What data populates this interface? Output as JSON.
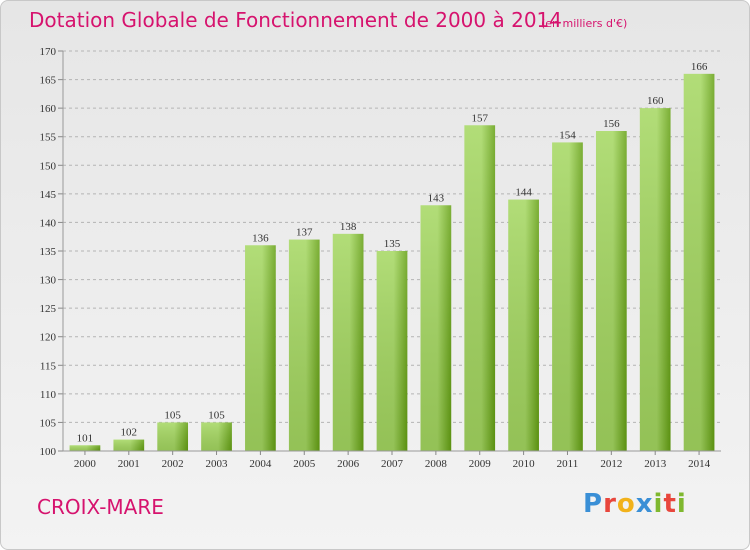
{
  "header": {
    "title": "Dotation Globale de Fonctionnement de 2000 à 2014",
    "unit": "(en milliers d'€)"
  },
  "footer": {
    "commune": "CROIX-MARE",
    "brand_letters": [
      "P",
      "r",
      "o",
      "x",
      "i",
      "t",
      "i"
    ],
    "brand_colors": [
      "#3a8fd6",
      "#e8463c",
      "#f2b21b",
      "#3a8fd6",
      "#7fb82f",
      "#e8463c",
      "#7fb82f"
    ]
  },
  "colors": {
    "title": "#d6136e",
    "bar_light": "#a4d760",
    "bar_dark": "#64a012",
    "grid": "#b4b4b4",
    "axis_text": "#333333"
  },
  "chart_data": {
    "type": "bar",
    "title": "Dotation Globale de Fonctionnement de 2000 à 2014",
    "xlabel": "",
    "ylabel": "",
    "categories": [
      "2000",
      "2001",
      "2002",
      "2003",
      "2004",
      "2005",
      "2006",
      "2007",
      "2008",
      "2009",
      "2010",
      "2011",
      "2012",
      "2013",
      "2014"
    ],
    "values": [
      101,
      102,
      105,
      105,
      136,
      137,
      138,
      135,
      143,
      157,
      144,
      154,
      156,
      160,
      166
    ],
    "ylim": [
      100,
      170
    ],
    "yticks": [
      100,
      105,
      110,
      115,
      120,
      125,
      130,
      135,
      140,
      145,
      150,
      155,
      160,
      165,
      170
    ],
    "grid": true,
    "legend": "none"
  }
}
